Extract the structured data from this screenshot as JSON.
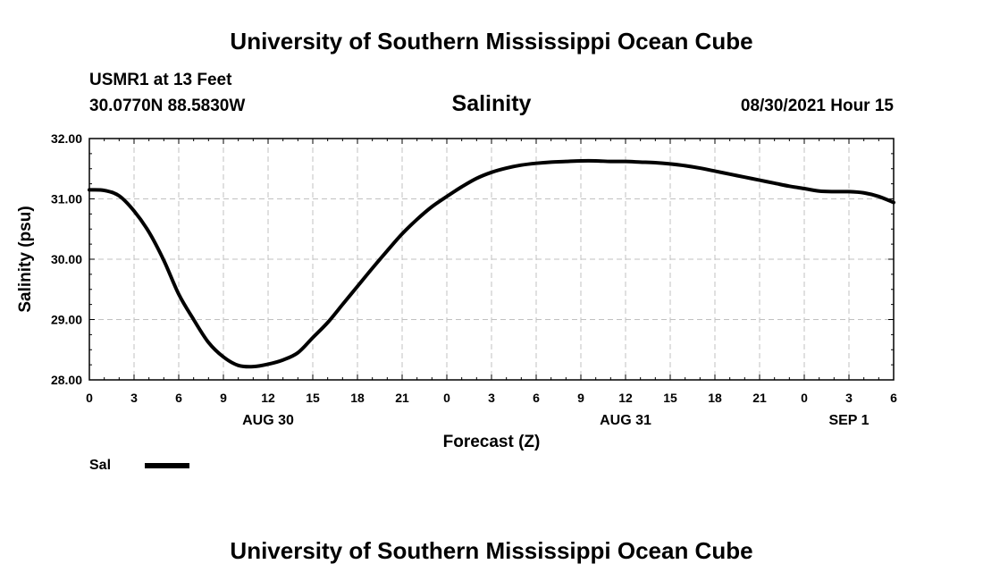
{
  "header": {
    "title_top": "University of Southern Mississippi Ocean Cube",
    "title_bottom": "University of Southern Mississippi Ocean Cube",
    "station": "USMR1 at 13 Feet",
    "coordinates": "30.0770N  88.5830W",
    "datetime": "08/30/2021 Hour 15"
  },
  "chart_data": {
    "type": "line",
    "title": "Salinity",
    "xlabel": "Forecast (Z)",
    "ylabel": "Salinity (psu)",
    "xlim": [
      0,
      54
    ],
    "ylim": [
      28,
      32
    ],
    "grid": true,
    "x_ticks": [
      0,
      3,
      6,
      9,
      12,
      15,
      18,
      21,
      24,
      27,
      30,
      33,
      36,
      39,
      42,
      45,
      48,
      51,
      54
    ],
    "x_tick_labels": [
      "0",
      "3",
      "6",
      "9",
      "12",
      "15",
      "18",
      "21",
      "0",
      "3",
      "6",
      "9",
      "12",
      "15",
      "18",
      "21",
      "0",
      "3",
      "6"
    ],
    "y_ticks": [
      28,
      29,
      30,
      31,
      32
    ],
    "y_tick_labels": [
      "28.00",
      "29.00",
      "30.00",
      "31.00",
      "32.00"
    ],
    "day_labels": [
      {
        "x": 12,
        "label": "AUG 30"
      },
      {
        "x": 36,
        "label": "AUG 31"
      },
      {
        "x": 51,
        "label": "SEP 1"
      }
    ],
    "series": [
      {
        "name": "Sal",
        "color": "#000000",
        "x": [
          0,
          1,
          2,
          3,
          4,
          5,
          6,
          7,
          8,
          9,
          10,
          11,
          12,
          13,
          14,
          15,
          16,
          17,
          18,
          19,
          20,
          21,
          22,
          23,
          24,
          25,
          26,
          27,
          28,
          29,
          30,
          31,
          32,
          33,
          34,
          35,
          36,
          37,
          38,
          39,
          40,
          41,
          42,
          43,
          44,
          45,
          46,
          47,
          48,
          49,
          50,
          51,
          52,
          53,
          54
        ],
        "values": [
          31.15,
          31.14,
          31.05,
          30.8,
          30.45,
          29.98,
          29.42,
          29.0,
          28.62,
          28.38,
          28.24,
          28.22,
          28.26,
          28.33,
          28.45,
          28.7,
          28.95,
          29.25,
          29.55,
          29.85,
          30.14,
          30.42,
          30.66,
          30.87,
          31.04,
          31.2,
          31.34,
          31.44,
          31.51,
          31.56,
          31.59,
          31.61,
          31.62,
          31.63,
          31.63,
          31.62,
          31.62,
          31.61,
          31.6,
          31.58,
          31.55,
          31.51,
          31.46,
          31.41,
          31.36,
          31.31,
          31.26,
          31.21,
          31.17,
          31.13,
          31.12,
          31.12,
          31.1,
          31.04,
          30.94
        ]
      }
    ],
    "legend": {
      "position": "bottom-left",
      "entries": [
        "Sal"
      ]
    }
  }
}
